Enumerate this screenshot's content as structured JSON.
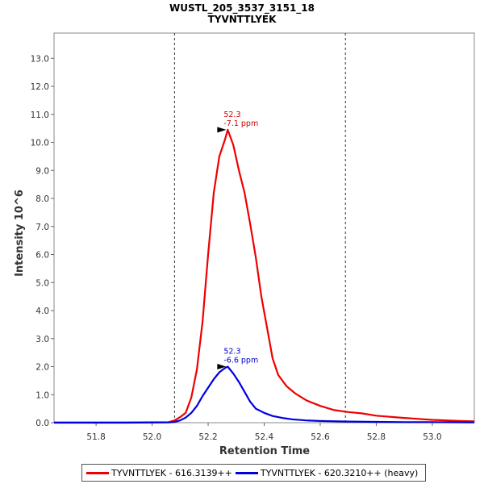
{
  "chart_data": {
    "type": "line",
    "title": "WUSTL_205_3537_3151_18",
    "subtitle": "TYVNTTLYEK",
    "xlabel": "Retention Time",
    "ylabel": "Intensity 10^6",
    "xlim": [
      51.65,
      53.15
    ],
    "ylim": [
      0,
      13.9
    ],
    "x_ticks": [
      51.8,
      52.0,
      52.2,
      52.4,
      52.6,
      52.8,
      53.0
    ],
    "x_tick_labels": [
      "51.8",
      "52.0",
      "52.2",
      "52.4",
      "52.6",
      "52.8",
      "53.0"
    ],
    "y_ticks": [
      0,
      1,
      2,
      3,
      4,
      5,
      6,
      7,
      8,
      9,
      10,
      11,
      12,
      13
    ],
    "y_tick_labels": [
      "0.0",
      "1.0",
      "2.0",
      "3.0",
      "4.0",
      "5.0",
      "6.0",
      "7.0",
      "8.0",
      "9.0",
      "10.0",
      "11.0",
      "12.0",
      "13.0"
    ],
    "vertical_lines": [
      52.08,
      52.69
    ],
    "series": [
      {
        "name": "TYVNTTLYEK - 616.3139++",
        "color": "#ee0000",
        "x": [
          51.65,
          51.9,
          52.06,
          52.08,
          52.1,
          52.12,
          52.14,
          52.16,
          52.18,
          52.2,
          52.22,
          52.24,
          52.26,
          52.27,
          52.29,
          52.31,
          52.33,
          52.35,
          52.37,
          52.39,
          52.41,
          52.43,
          52.45,
          52.48,
          52.51,
          52.55,
          52.6,
          52.65,
          52.7,
          52.75,
          52.8,
          52.9,
          53.0,
          53.1,
          53.15
        ],
        "values": [
          0.01,
          0.01,
          0.02,
          0.08,
          0.2,
          0.35,
          0.9,
          1.9,
          3.6,
          6.0,
          8.2,
          9.5,
          10.1,
          10.45,
          9.9,
          9.0,
          8.2,
          7.1,
          5.9,
          4.5,
          3.4,
          2.3,
          1.7,
          1.3,
          1.05,
          0.8,
          0.6,
          0.45,
          0.38,
          0.33,
          0.25,
          0.17,
          0.1,
          0.06,
          0.05
        ]
      },
      {
        "name": "TYVNTTLYEK - 620.3210++ (heavy)",
        "color": "#0000dd",
        "x": [
          51.65,
          51.9,
          52.06,
          52.08,
          52.1,
          52.12,
          52.14,
          52.16,
          52.18,
          52.2,
          52.22,
          52.24,
          52.26,
          52.27,
          52.29,
          52.31,
          52.33,
          52.35,
          52.37,
          52.4,
          52.43,
          52.47,
          52.5,
          52.55,
          52.6,
          52.7,
          52.8,
          52.9,
          53.0,
          53.15
        ],
        "values": [
          0.0,
          0.0,
          0.01,
          0.03,
          0.08,
          0.18,
          0.35,
          0.6,
          0.95,
          1.25,
          1.55,
          1.8,
          1.95,
          2.0,
          1.75,
          1.45,
          1.1,
          0.75,
          0.5,
          0.35,
          0.24,
          0.16,
          0.12,
          0.08,
          0.06,
          0.04,
          0.03,
          0.02,
          0.02,
          0.01
        ]
      }
    ],
    "annotations": [
      {
        "series": 0,
        "x": 52.27,
        "y": 10.45,
        "lines": [
          "52.3",
          "-7.1 ppm"
        ],
        "color": "#cc0000"
      },
      {
        "series": 1,
        "x": 52.27,
        "y": 2.0,
        "lines": [
          "52.3",
          "-6.6 ppm"
        ],
        "color": "#0000cc"
      }
    ],
    "legend": {
      "position": "bottom",
      "items": [
        "TYVNTTLYEK - 616.3139++",
        "TYVNTTLYEK - 620.3210++ (heavy)"
      ]
    }
  }
}
